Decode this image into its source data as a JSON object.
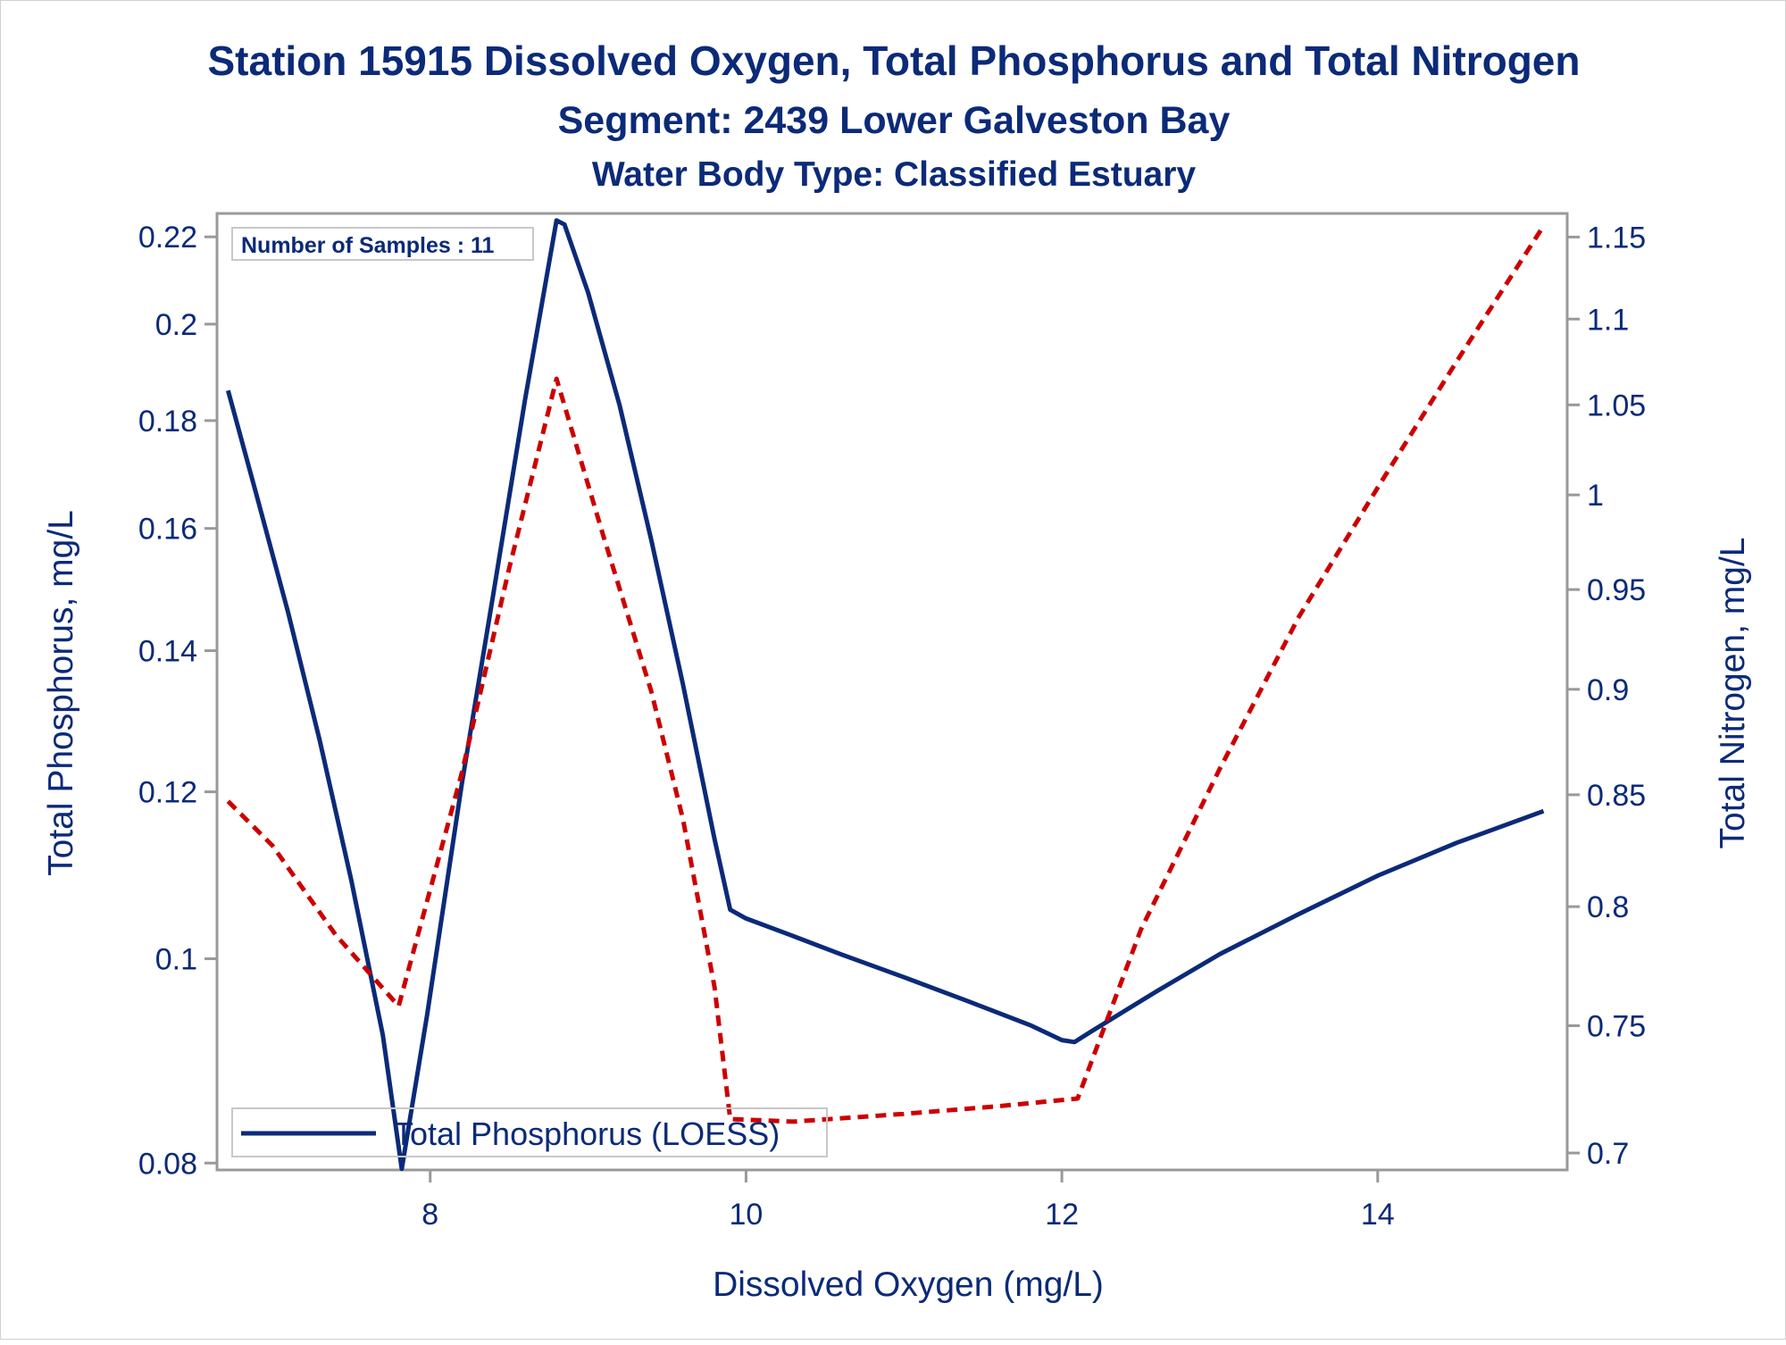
{
  "chart_data": {
    "type": "line",
    "title": "Station 15915  Dissolved Oxygen, Total Phosphorus and Total Nitrogen",
    "subtitle": "Segment: 2439  Lower Galveston Bay",
    "subtitle2": "Water Body Type: Classified Estuary",
    "xlabel": "Dissolved Oxygen (mg/L)",
    "ylabel_left": "Total Phosphorus, mg/L",
    "ylabel_right": "Total Nitrogen, mg/L",
    "annotation": "Number of Samples : 11",
    "x_ticks": [
      8,
      10,
      12,
      14
    ],
    "y_left_ticks": [
      0.08,
      0.1,
      0.12,
      0.14,
      0.16,
      0.18,
      0.2,
      0.22
    ],
    "y_left_tick_labels": [
      "0.08",
      "0.1",
      "0.12",
      "0.14",
      "0.16",
      "0.18",
      "0.2",
      "0.22"
    ],
    "y_left_scale": "log",
    "y_right_ticks": [
      0.7,
      0.75,
      0.8,
      0.85,
      0.9,
      0.95,
      1.0,
      1.05,
      1.1,
      1.15
    ],
    "y_right_tick_labels": [
      "0.7",
      "0.75",
      "0.8",
      "0.85",
      "0.9",
      "0.95",
      "1",
      "1.05",
      "1.1",
      "1.15"
    ],
    "y_right_scale": "log",
    "xlim": [
      6.65,
      15.2
    ],
    "ylim_left": [
      0.0794,
      0.2257
    ],
    "ylim_right": [
      0.6936,
      1.1648
    ],
    "legend": {
      "placement": "bottom-left",
      "entries": [
        "Total Phosphorus (LOESS)"
      ]
    },
    "series": [
      {
        "name": "Total Phosphorus (LOESS)",
        "axis": "left",
        "color": "#0b2a78",
        "style": "solid",
        "x": [
          6.72,
          6.9,
          7.1,
          7.3,
          7.5,
          7.7,
          7.82,
          7.98,
          8.2,
          8.4,
          8.6,
          8.8,
          8.85,
          9.0,
          9.2,
          9.4,
          9.6,
          9.8,
          9.9,
          10.0,
          10.3,
          10.6,
          11.0,
          11.4,
          11.8,
          12.0,
          12.08,
          12.2,
          12.6,
          13.0,
          13.5,
          14.0,
          14.5,
          15.05
        ],
        "y": [
          0.186,
          0.166,
          0.146,
          0.127,
          0.109,
          0.092,
          0.0795,
          0.094,
          0.121,
          0.149,
          0.184,
          0.224,
          0.223,
          0.207,
          0.183,
          0.158,
          0.135,
          0.114,
          0.1055,
          0.1045,
          0.1025,
          0.1005,
          0.098,
          0.0955,
          0.093,
          0.0915,
          0.0913,
          0.0925,
          0.0965,
          0.1005,
          0.105,
          0.1095,
          0.1135,
          0.1175
        ]
      },
      {
        "name": "",
        "axis": "right",
        "color": "#cc0000",
        "style": "dashed",
        "x": [
          6.72,
          7.0,
          7.4,
          7.8,
          8.2,
          8.5,
          8.8,
          9.1,
          9.4,
          9.6,
          9.8,
          9.9,
          10.3,
          11.0,
          11.6,
          12.1,
          12.5,
          13.0,
          13.5,
          14.0,
          14.5,
          15.05
        ],
        "y": [
          0.847,
          0.827,
          0.788,
          0.758,
          0.86,
          0.961,
          1.065,
          0.977,
          0.899,
          0.839,
          0.766,
          0.713,
          0.712,
          0.715,
          0.718,
          0.721,
          0.79,
          0.862,
          0.936,
          1.004,
          1.075,
          1.157
        ]
      }
    ]
  }
}
